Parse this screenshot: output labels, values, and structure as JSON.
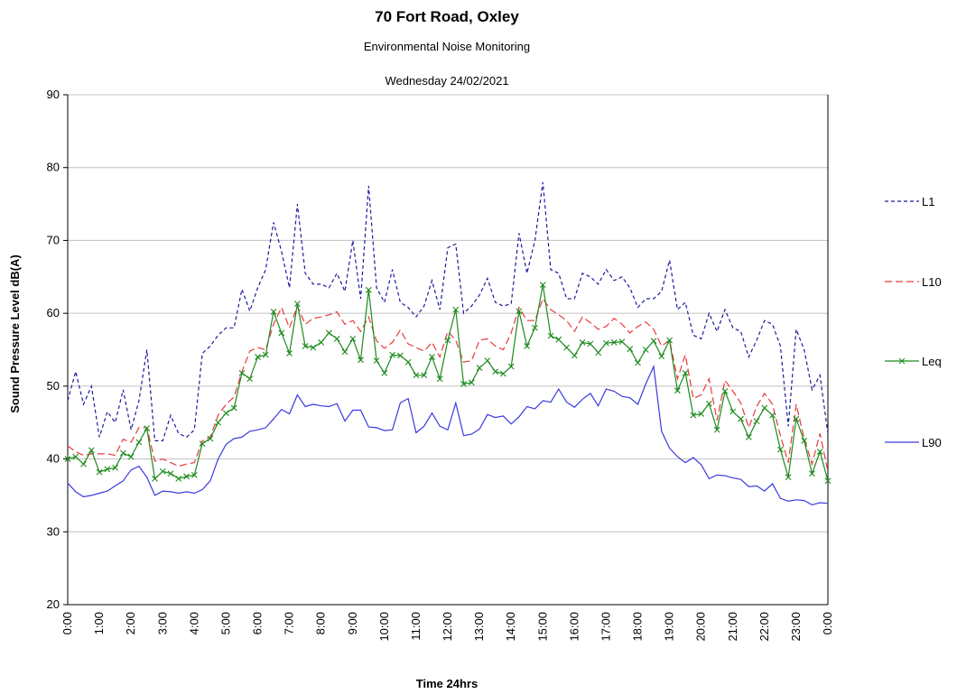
{
  "chart_data": {
    "type": "line",
    "title": "70 Fort Road, Oxley",
    "subtitle": "Environmental Noise Monitoring",
    "date": "Wednesday  24/02/2021",
    "y_label": "Sound Pressure Level dB(A)",
    "x_label": "Time 24hrs",
    "categories": [
      "0:00",
      null,
      null,
      null,
      "1:00",
      null,
      null,
      null,
      "2:00",
      null,
      null,
      null,
      "3:00",
      null,
      null,
      null,
      "4:00",
      null,
      null,
      null,
      "5:00",
      null,
      null,
      null,
      "6:00",
      null,
      null,
      null,
      "7:00",
      null,
      null,
      null,
      "8:00",
      null,
      null,
      null,
      "9:00",
      null,
      null,
      null,
      "10:00",
      null,
      null,
      null,
      "11:00",
      null,
      null,
      null,
      "12:00",
      null,
      null,
      null,
      "13:00",
      null,
      null,
      null,
      "14:00",
      null,
      null,
      null,
      "15:00",
      null,
      null,
      null,
      "16:00",
      null,
      null,
      null,
      "17:00",
      null,
      null,
      null,
      "18:00",
      null,
      null,
      null,
      "19:00",
      null,
      null,
      null,
      "20:00",
      null,
      null,
      null,
      "21:00",
      null,
      null,
      null,
      "22:00",
      null,
      null,
      null,
      "23:00",
      null,
      null,
      null,
      "0:00"
    ],
    "series": [
      {
        "name": "L1",
        "color": "#1c1c9c",
        "dash": "4,3",
        "marker": null,
        "values": [
          48.0,
          52.0,
          47.5,
          50.0,
          43.0,
          46.5,
          45.0,
          49.5,
          44.0,
          48.0,
          55.0,
          42.5,
          42.5,
          46.0,
          43.5,
          43.0,
          44.0,
          54.5,
          55.5,
          57.0,
          58.0,
          58.0,
          63.3,
          60.3,
          63.5,
          66.0,
          72.5,
          68.5,
          63.5,
          75.0,
          65.5,
          64.0,
          64.0,
          63.5,
          65.5,
          63.0,
          70.0,
          62.0,
          77.5,
          63.5,
          61.5,
          66.0,
          61.5,
          60.8,
          59.5,
          61.0,
          64.5,
          60.5,
          69.0,
          69.5,
          60.0,
          61.0,
          62.5,
          64.8,
          61.5,
          61.0,
          61.3,
          71.0,
          65.5,
          70.0,
          78.0,
          66.0,
          65.5,
          62.0,
          62.0,
          65.5,
          65.0,
          64.0,
          66.0,
          64.5,
          65.0,
          63.5,
          60.8,
          62.0,
          62.0,
          63.0,
          67.3,
          60.5,
          61.5,
          57.0,
          56.5,
          60.0,
          57.5,
          60.5,
          58.0,
          57.5,
          54.0,
          56.3,
          59.0,
          58.5,
          55.5,
          44.5,
          57.8,
          55.0,
          49.5,
          51.5,
          43.5
        ]
      },
      {
        "name": "L10",
        "color": "#e8393c",
        "dash": "8,4",
        "marker": null,
        "values": [
          41.8,
          41.0,
          40.5,
          40.7,
          40.7,
          40.7,
          40.5,
          42.7,
          42.3,
          44.3,
          44.3,
          39.7,
          40.0,
          39.5,
          39.0,
          39.3,
          39.5,
          42.5,
          43.0,
          46.0,
          47.5,
          48.5,
          52.0,
          54.8,
          55.3,
          55.0,
          58.5,
          60.8,
          58.0,
          61.0,
          58.5,
          59.3,
          59.5,
          59.8,
          60.2,
          58.5,
          59.0,
          57.5,
          59.5,
          56.2,
          55.2,
          56.0,
          57.7,
          55.8,
          55.3,
          54.8,
          56.0,
          54.0,
          57.5,
          56.3,
          53.3,
          53.5,
          56.3,
          56.5,
          55.5,
          55.0,
          57.3,
          60.8,
          59.0,
          59.0,
          62.0,
          60.5,
          59.8,
          59.0,
          57.5,
          59.5,
          58.7,
          57.8,
          58.2,
          59.3,
          58.5,
          57.3,
          58.2,
          58.8,
          57.8,
          55.5,
          56.3,
          51.0,
          54.3,
          48.3,
          48.8,
          51.0,
          45.3,
          50.8,
          49.3,
          47.7,
          44.3,
          47.2,
          49.0,
          47.5,
          43.2,
          39.5,
          47.5,
          42.8,
          39.3,
          43.5,
          38.3
        ]
      },
      {
        "name": "Leq",
        "color": "#1d8a1d",
        "dash": null,
        "marker": "x",
        "values": [
          40.0,
          40.3,
          39.3,
          41.2,
          38.2,
          38.6,
          38.8,
          40.8,
          40.3,
          42.3,
          44.2,
          37.3,
          38.3,
          38.0,
          37.3,
          37.6,
          37.8,
          42.1,
          42.8,
          45.0,
          46.3,
          47.0,
          51.8,
          51.0,
          54.0,
          54.3,
          60.2,
          57.3,
          54.5,
          61.3,
          55.5,
          55.3,
          56.0,
          57.3,
          56.5,
          54.7,
          56.5,
          53.6,
          63.2,
          53.5,
          51.8,
          54.3,
          54.2,
          53.3,
          51.5,
          51.5,
          54.0,
          51.0,
          56.3,
          60.5,
          50.3,
          50.5,
          52.5,
          53.5,
          52.0,
          51.7,
          52.7,
          60.3,
          55.5,
          58.0,
          63.9,
          56.9,
          56.4,
          55.3,
          54.2,
          56.0,
          55.8,
          54.6,
          55.9,
          56.0,
          56.1,
          55.1,
          53.2,
          55.0,
          56.2,
          54.1,
          56.3,
          49.4,
          51.8,
          46.0,
          46.2,
          47.6,
          44.0,
          49.3,
          46.5,
          45.5,
          43.0,
          45.2,
          47.0,
          46.0,
          41.3,
          37.5,
          45.5,
          42.5,
          38.0,
          41.0,
          37.0
        ]
      },
      {
        "name": "L90",
        "color": "#3a3ae0",
        "dash": null,
        "marker": null,
        "values": [
          36.7,
          35.5,
          34.8,
          35.0,
          35.3,
          35.6,
          36.3,
          37.0,
          38.5,
          39.0,
          37.5,
          35.0,
          35.6,
          35.5,
          35.3,
          35.5,
          35.3,
          35.8,
          37.0,
          40.0,
          42.0,
          42.8,
          43.0,
          43.8,
          44.0,
          44.3,
          45.5,
          46.8,
          46.2,
          48.8,
          47.2,
          47.5,
          47.3,
          47.2,
          47.6,
          45.2,
          46.7,
          46.7,
          44.4,
          44.3,
          43.9,
          44.0,
          47.7,
          48.3,
          43.6,
          44.5,
          46.3,
          44.5,
          44.0,
          47.7,
          43.2,
          43.4,
          44.1,
          46.1,
          45.7,
          45.9,
          44.8,
          45.8,
          47.2,
          46.9,
          48.0,
          47.8,
          49.6,
          47.8,
          47.1,
          48.2,
          49.0,
          47.3,
          49.6,
          49.3,
          48.6,
          48.4,
          47.5,
          50.3,
          52.7,
          43.8,
          41.5,
          40.3,
          39.5,
          40.2,
          39.2,
          37.3,
          37.8,
          37.7,
          37.4,
          37.2,
          36.2,
          36.3,
          35.6,
          36.6,
          34.6,
          34.2,
          34.4,
          34.3,
          33.7,
          34.0,
          33.9
        ]
      }
    ],
    "ylim": [
      20,
      90
    ],
    "yticks": [
      20,
      30,
      40,
      50,
      60,
      70,
      80,
      90
    ],
    "grid": true,
    "legend": "right"
  }
}
